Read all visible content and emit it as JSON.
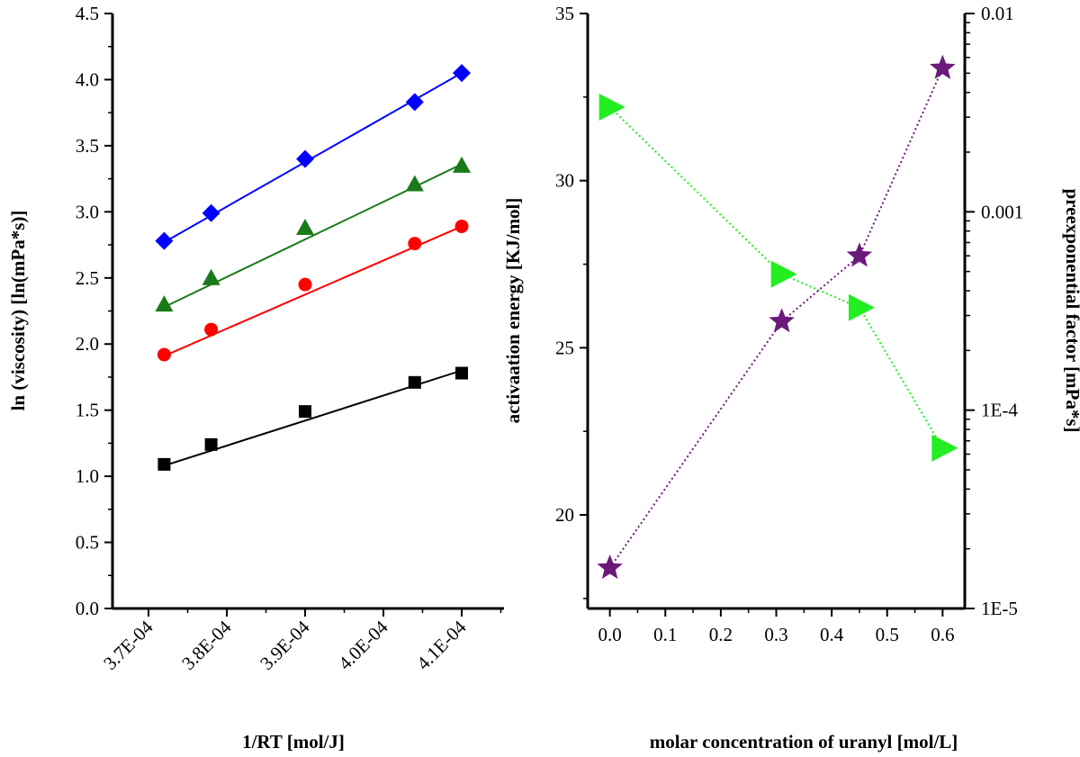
{
  "chart_data": [
    {
      "type": "scatter",
      "title": "",
      "xlabel": "1/RT [mol/J]",
      "ylabel": "ln (viscosity) [ln(mPa*s)]",
      "xlim": [
        0.0003654,
        0.0004154
      ],
      "ylim": [
        0.0,
        4.5
      ],
      "xticks": [
        0.00037,
        0.00038,
        0.00039,
        0.0004,
        0.00041
      ],
      "xtick_labels": [
        "3.7E-04",
        "3.8E-04",
        "3.9E-04",
        "4.0E-04",
        "4.1E-04"
      ],
      "yticks": [
        0.0,
        0.5,
        1.0,
        1.5,
        2.0,
        2.5,
        3.0,
        3.5,
        4.0,
        4.5
      ],
      "ytick_labels": [
        "0.0",
        "0.5",
        "1.0",
        "1.5",
        "2.0",
        "2.5",
        "3.0",
        "3.5",
        "4.0",
        "4.5"
      ],
      "x": [
        0.000372,
        0.000378,
        0.00039,
        0.000404,
        0.00041
      ],
      "series": [
        {
          "name": "black squares",
          "marker": "square",
          "color": "#000000",
          "values": [
            1.09,
            1.24,
            1.49,
            1.71,
            1.78
          ],
          "fit": [
            1.08,
            1.8
          ]
        },
        {
          "name": "red circles",
          "marker": "circle",
          "color": "#ff0000",
          "values": [
            1.92,
            2.11,
            2.45,
            2.76,
            2.89
          ],
          "fit": [
            1.91,
            2.89
          ]
        },
        {
          "name": "green triangles",
          "marker": "triangle",
          "color": "#1a7a1a",
          "values": [
            2.3,
            2.5,
            2.88,
            3.21,
            3.35
          ],
          "fit": [
            2.28,
            3.36
          ]
        },
        {
          "name": "blue diamonds",
          "marker": "diamond",
          "color": "#0000ff",
          "values": [
            2.78,
            2.99,
            3.4,
            3.83,
            4.05
          ],
          "fit": [
            2.77,
            4.05
          ]
        }
      ]
    },
    {
      "type": "scatter",
      "title": "",
      "xlabel": "molar concentration of uranyl [mol/L]",
      "ylabel": "activaation energy [KJ/mol]",
      "y2label": "preexponential factor [mPa*s]",
      "xlim": [
        -0.04,
        0.64
      ],
      "ylim": [
        17.2,
        35
      ],
      "y2lim_log10": [
        -5,
        -2
      ],
      "xticks": [
        0.0,
        0.1,
        0.2,
        0.3,
        0.4,
        0.5,
        0.6
      ],
      "xtick_labels": [
        "0.0",
        "0.1",
        "0.2",
        "0.3",
        "0.4",
        "0.5",
        "0.6"
      ],
      "yticks": [
        20,
        25,
        30,
        35
      ],
      "ytick_labels": [
        "20",
        "25",
        "30",
        "35"
      ],
      "y2ticks_log10": [
        -5,
        -4,
        -3,
        -2
      ],
      "y2tick_labels": [
        "1E-5",
        "1E-4",
        "0.001",
        "0.01"
      ],
      "series": [
        {
          "name": "activation energy",
          "axis": "left",
          "marker": "right-triangle",
          "color": "#22ee22",
          "line": "dotted",
          "x": [
            0.0,
            0.31,
            0.45,
            0.6
          ],
          "values": [
            32.2,
            27.2,
            26.2,
            22.0
          ]
        },
        {
          "name": "preexponential factor",
          "axis": "right",
          "marker": "star",
          "color": "#6b1a7a",
          "line": "dotted",
          "x": [
            0.0,
            0.31,
            0.45,
            0.6
          ],
          "values": [
            1.6e-05,
            0.00028,
            0.0006,
            0.0053
          ]
        }
      ]
    }
  ]
}
